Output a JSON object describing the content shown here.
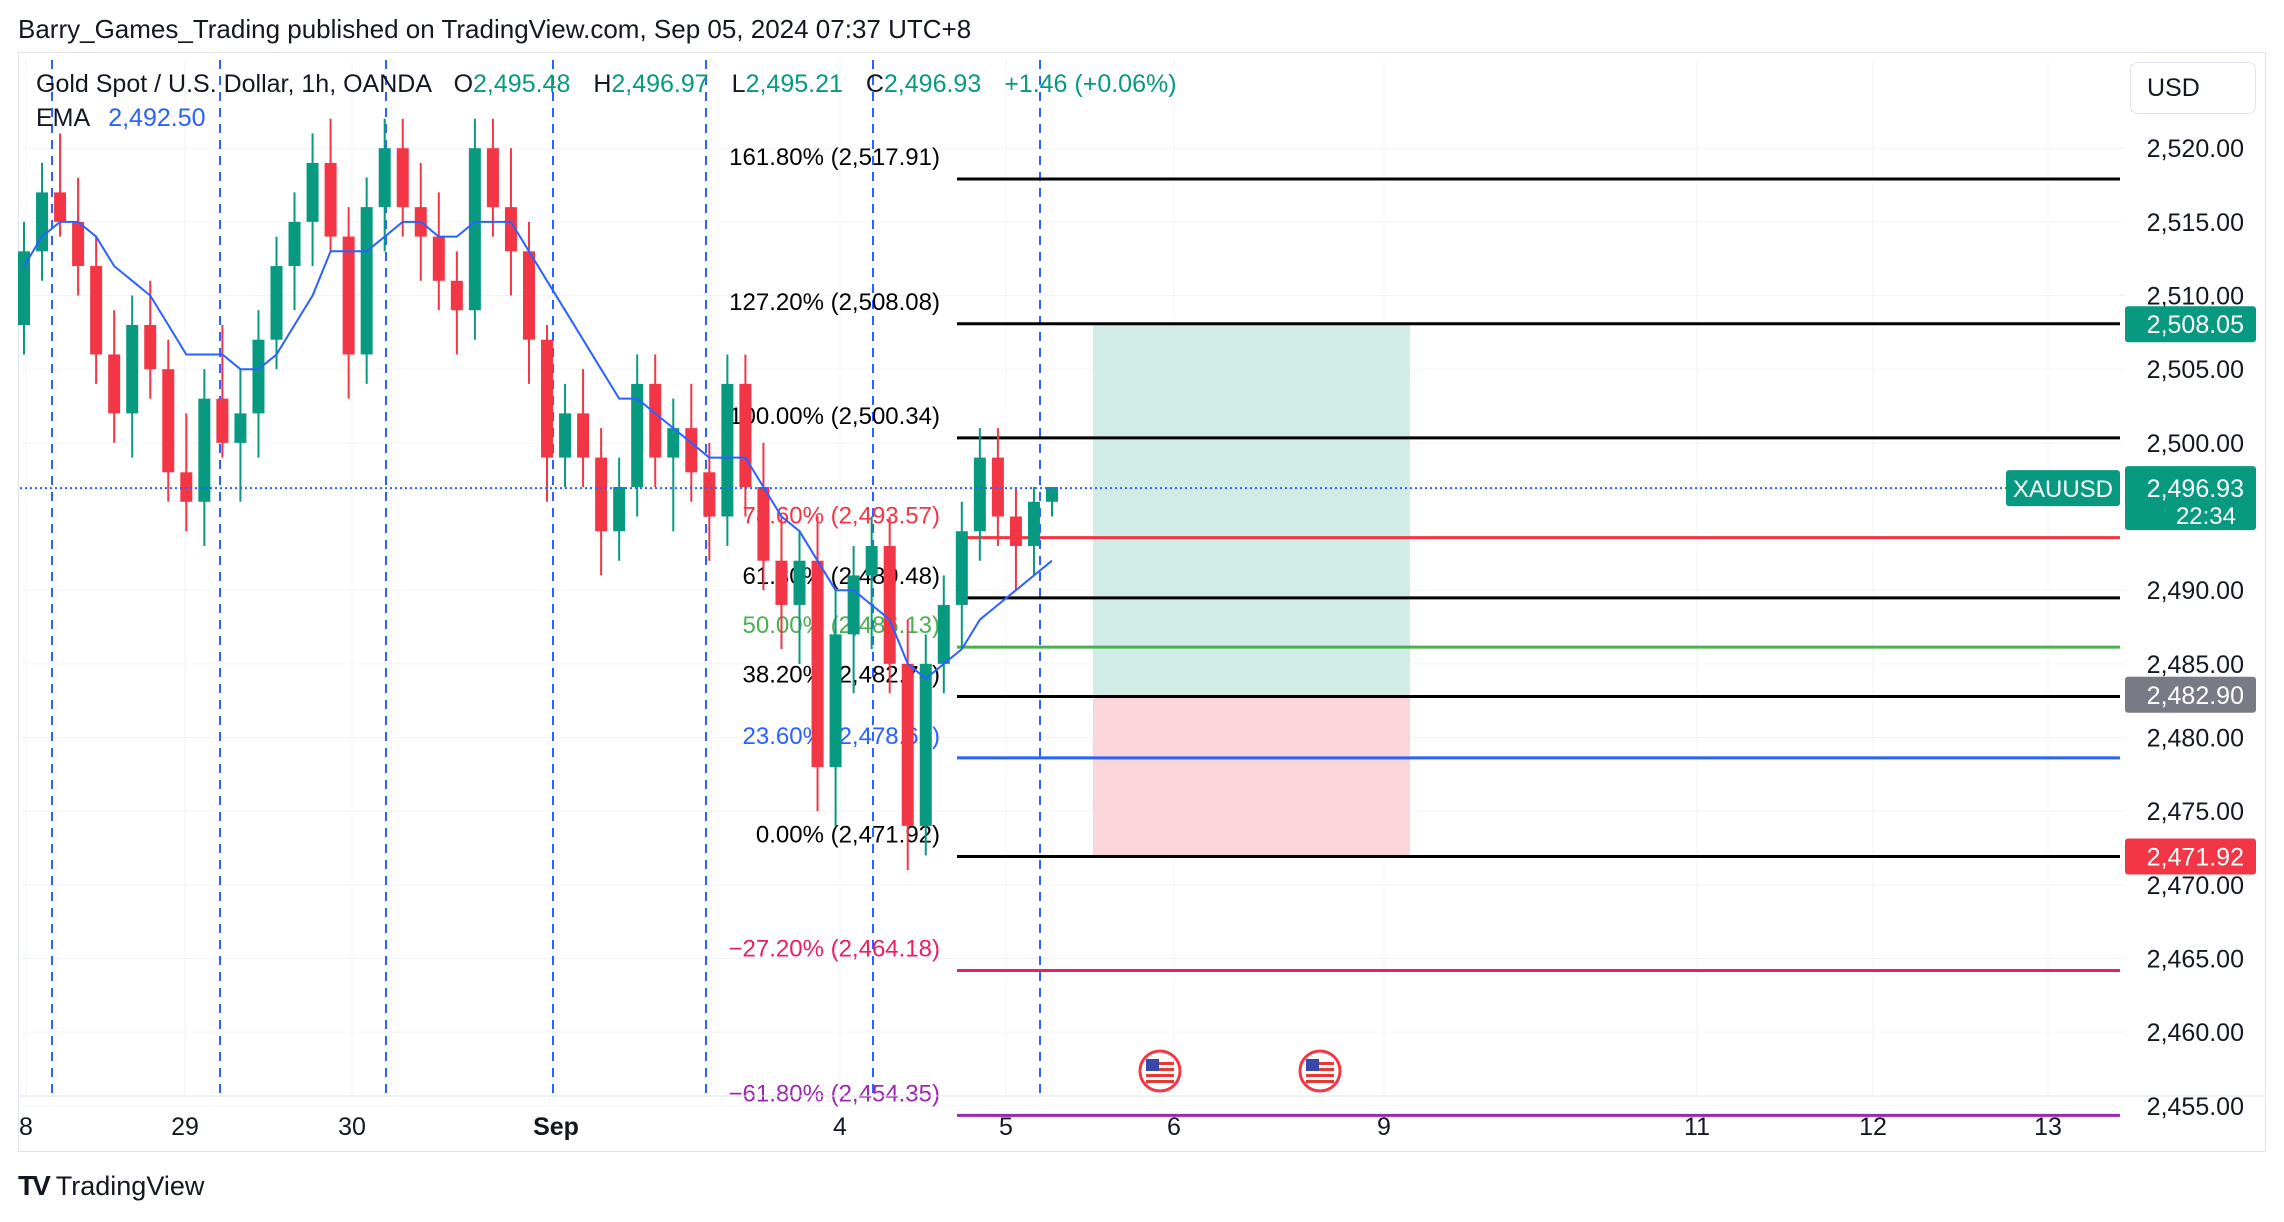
{
  "header": {
    "published": "Barry_Games_Trading published on TradingView.com, Sep 05, 2024 07:37 UTC+8"
  },
  "legend": {
    "symbol": "Gold Spot / U.S. Dollar, 1h, OANDA",
    "o_label": "O",
    "o_value": "2,495.48",
    "h_label": "H",
    "h_value": "2,496.97",
    "l_label": "L",
    "l_value": "2,495.21",
    "c_label": "C",
    "c_value": "2,496.93",
    "change": "+1.46 (+0.06%)",
    "ema_label": "EMA",
    "ema_value": "2,492.50"
  },
  "currency_button": "USD",
  "branding": "TradingView",
  "colors": {
    "up": "#089981",
    "down": "#f23645",
    "ema": "#2962ff",
    "fib_black": "#000000",
    "fib_red": "#f23645",
    "fib_green": "#4caf50",
    "fib_blue": "#2962ff",
    "fib_crimson": "#e91e63",
    "fib_purple": "#9c27b0",
    "target_zone": "#d1ece6",
    "stop_zone": "#fad6da"
  },
  "chart_data": {
    "type": "candlestick",
    "instrument": "XAUUSD",
    "timeframe": "1h",
    "y_axis": {
      "min": 2452.0,
      "max": 2523.0,
      "ticks": [
        "2,520.00",
        "2,515.00",
        "2,510.00",
        "2,505.00",
        "2,500.00",
        "2,490.00",
        "2,485.00",
        "2,480.00",
        "2,475.00",
        "2,470.00",
        "2,465.00",
        "2,460.00",
        "2,455.00"
      ],
      "tick_values": [
        2520,
        2515,
        2510,
        2505,
        2500,
        2490,
        2485,
        2480,
        2475,
        2470,
        2465,
        2460,
        2455
      ]
    },
    "x_axis": {
      "labels": [
        "8",
        "29",
        "30",
        "Sep",
        "4",
        "5",
        "6",
        "9",
        "11",
        "12",
        "13"
      ]
    },
    "fib_levels": [
      {
        "label": "161.80% (2,517.91)",
        "value": 2517.91,
        "color_key": "fib_black"
      },
      {
        "label": "127.20% (2,508.08)",
        "value": 2508.08,
        "color_key": "fib_black"
      },
      {
        "label": "100.00% (2,500.34)",
        "value": 2500.34,
        "color_key": "fib_black"
      },
      {
        "label": "78.60% (2,493.57)",
        "value": 2493.57,
        "color_key": "fib_red"
      },
      {
        "label": "61.80% (2,489.48)",
        "value": 2489.48,
        "color_key": "fib_black"
      },
      {
        "label": "50.00% (2,486.13)",
        "value": 2486.13,
        "color_key": "fib_green"
      },
      {
        "label": "38.20% (2,482.78)",
        "value": 2482.78,
        "color_key": "fib_black"
      },
      {
        "label": "23.60% (2,478.62)",
        "value": 2478.62,
        "color_key": "fib_blue"
      },
      {
        "label": "0.00% (2,471.92)",
        "value": 2471.92,
        "color_key": "fib_black"
      },
      {
        "label": "−27.20% (2,464.18)",
        "value": 2464.18,
        "color_key": "fib_crimson"
      },
      {
        "label": "−61.80% (2,454.35)",
        "value": 2454.35,
        "color_key": "fib_purple"
      }
    ],
    "price_badges": [
      {
        "text": "2,508.05",
        "value": 2508.05,
        "color": "#089981"
      },
      {
        "text": "2,496.93",
        "value": 2496.93,
        "color": "#089981",
        "extra": "22:34",
        "tag": "XAUUSD"
      },
      {
        "text": "2,482.90",
        "value": 2482.9,
        "color": "#787b86"
      },
      {
        "text": "2,471.92",
        "value": 2471.92,
        "color": "#f23645"
      }
    ],
    "position": {
      "entry": 2482.9,
      "target": 2508.05,
      "stop": 2471.92
    },
    "current_price": 2496.93,
    "candles": [
      [
        2508,
        2515,
        2506,
        2513
      ],
      [
        2513,
        2519,
        2511,
        2517
      ],
      [
        2517,
        2521,
        2514,
        2515
      ],
      [
        2515,
        2518,
        2510,
        2512
      ],
      [
        2512,
        2514,
        2504,
        2506
      ],
      [
        2506,
        2509,
        2500,
        2502
      ],
      [
        2502,
        2510,
        2499,
        2508
      ],
      [
        2508,
        2511,
        2503,
        2505
      ],
      [
        2505,
        2507,
        2496,
        2498
      ],
      [
        2498,
        2502,
        2494,
        2496
      ],
      [
        2496,
        2505,
        2493,
        2503
      ],
      [
        2503,
        2508,
        2499,
        2500
      ],
      [
        2500,
        2505,
        2496,
        2502
      ],
      [
        2502,
        2509,
        2499,
        2507
      ],
      [
        2507,
        2514,
        2505,
        2512
      ],
      [
        2512,
        2517,
        2509,
        2515
      ],
      [
        2515,
        2521,
        2512,
        2519
      ],
      [
        2519,
        2522,
        2513,
        2514
      ],
      [
        2514,
        2516,
        2503,
        2506
      ],
      [
        2506,
        2518,
        2504,
        2516
      ],
      [
        2516,
        2522,
        2513,
        2520
      ],
      [
        2520,
        2522,
        2514,
        2516
      ],
      [
        2516,
        2519,
        2511,
        2514
      ],
      [
        2514,
        2517,
        2509,
        2511
      ],
      [
        2511,
        2513,
        2506,
        2509
      ],
      [
        2509,
        2522,
        2507,
        2520
      ],
      [
        2520,
        2522,
        2514,
        2516
      ],
      [
        2516,
        2520,
        2510,
        2513
      ],
      [
        2513,
        2515,
        2504,
        2507
      ],
      [
        2507,
        2508,
        2496,
        2499
      ],
      [
        2499,
        2504,
        2497,
        2502
      ],
      [
        2502,
        2505,
        2497,
        2499
      ],
      [
        2499,
        2501,
        2491,
        2494
      ],
      [
        2494,
        2499,
        2492,
        2497
      ],
      [
        2497,
        2506,
        2495,
        2504
      ],
      [
        2504,
        2506,
        2497,
        2499
      ],
      [
        2499,
        2503,
        2494,
        2501
      ],
      [
        2501,
        2504,
        2496,
        2498
      ],
      [
        2498,
        2500,
        2492,
        2495
      ],
      [
        2495,
        2506,
        2493,
        2504
      ],
      [
        2504,
        2506,
        2495,
        2497
      ],
      [
        2497,
        2500,
        2490,
        2492
      ],
      [
        2492,
        2495,
        2486,
        2489
      ],
      [
        2489,
        2494,
        2485,
        2492
      ],
      [
        2492,
        2495,
        2475,
        2478
      ],
      [
        2478,
        2490,
        2474,
        2487
      ],
      [
        2487,
        2493,
        2483,
        2491
      ],
      [
        2491,
        2495,
        2486,
        2493
      ],
      [
        2493,
        2495,
        2483,
        2485
      ],
      [
        2485,
        2488,
        2471,
        2474
      ],
      [
        2474,
        2487,
        2472,
        2485
      ],
      [
        2485,
        2491,
        2483,
        2489
      ],
      [
        2489,
        2496,
        2486,
        2494
      ],
      [
        2494,
        2501,
        2492,
        2499
      ],
      [
        2499,
        2501,
        2493,
        2495
      ],
      [
        2495,
        2497,
        2490,
        2493
      ],
      [
        2493,
        2497,
        2491,
        2496
      ],
      [
        2496,
        2497,
        2495,
        2497
      ]
    ],
    "ema": [
      2512,
      2514,
      2515,
      2515,
      2514,
      2512,
      2511,
      2510,
      2508,
      2506,
      2506,
      2506,
      2505,
      2505,
      2506,
      2508,
      2510,
      2513,
      2513,
      2513,
      2514,
      2515,
      2515,
      2514,
      2514,
      2515,
      2515,
      2515,
      2513,
      2511,
      2509,
      2507,
      2505,
      2503,
      2503,
      2502,
      2501,
      2500,
      2499,
      2499,
      2499,
      2497,
      2495,
      2494,
      2492,
      2490,
      2490,
      2489,
      2488,
      2485,
      2484,
      2485,
      2486,
      2488,
      2489,
      2490,
      2491,
      2492
    ]
  }
}
